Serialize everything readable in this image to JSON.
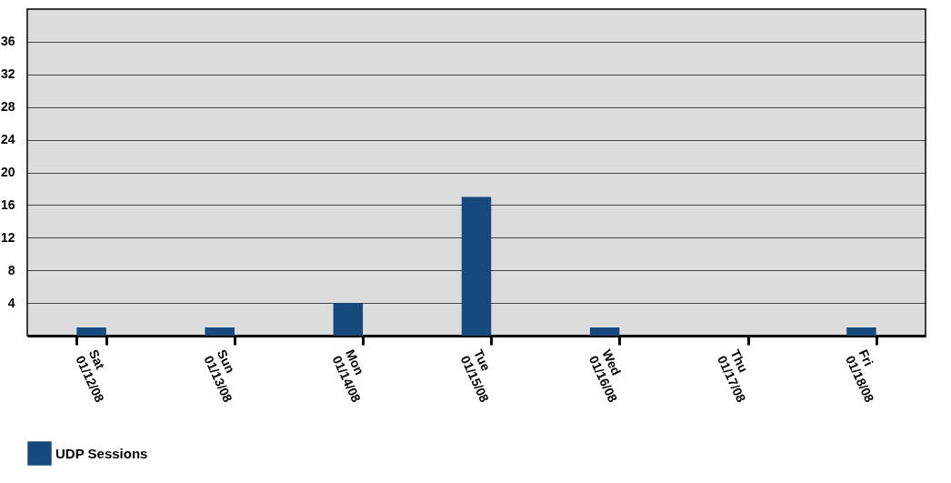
{
  "chart_data": {
    "type": "bar",
    "categories": [
      "Sat\n01/12/08",
      "Sun\n01/13/08",
      "Mon\n01/14/08",
      "Tue\n01/15/08",
      "Wed\n01/16/08",
      "Thu\n01/17/08",
      "Fri\n01/18/08"
    ],
    "series": [
      {
        "name": "UDP Sessions",
        "color": "#174a7c",
        "values": [
          1,
          1,
          4,
          17,
          1,
          0,
          1
        ]
      }
    ],
    "ylim": [
      0,
      40
    ],
    "yticks": [
      4,
      8,
      12,
      16,
      20,
      24,
      28,
      32,
      36
    ],
    "grid": "y",
    "legend": "bottom"
  }
}
